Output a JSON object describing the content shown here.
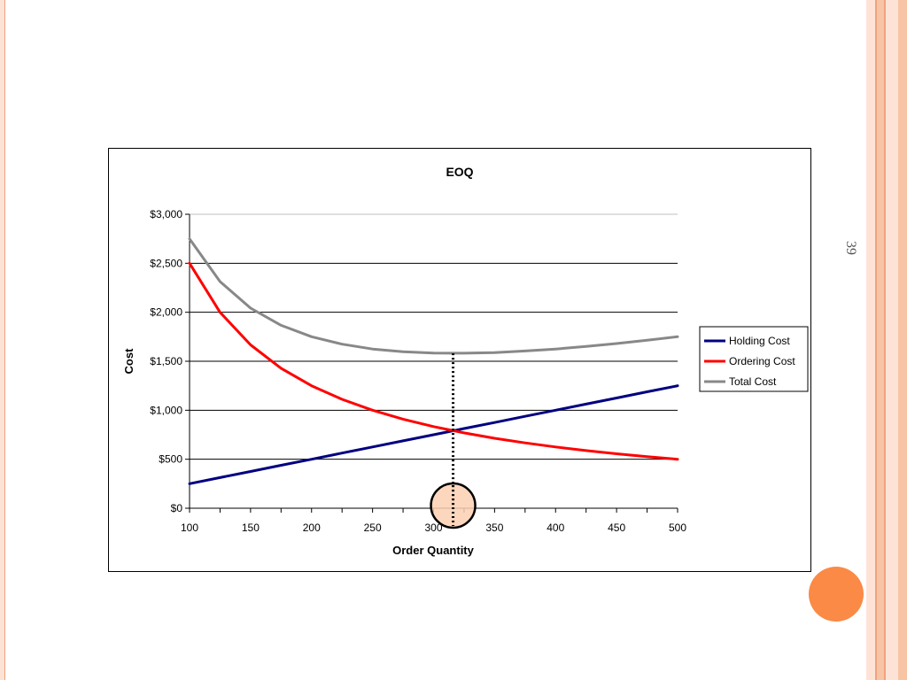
{
  "slide": {
    "number": "39",
    "colors": {
      "edge_light": "#fde3d6",
      "edge_mid": "#f7c4a6",
      "edge_line": "#f0a27f",
      "accent_circle": "#fa8a46",
      "highlight_fill": "#fbd0b2"
    }
  },
  "chart_data": {
    "type": "line",
    "title": "EOQ",
    "xlabel": "Order Quantity",
    "ylabel": "Cost",
    "xlim": [
      100,
      500
    ],
    "ylim": [
      0,
      3000
    ],
    "x_ticks": [
      "100",
      "150",
      "200",
      "250",
      "300",
      "350",
      "400",
      "450",
      "500"
    ],
    "y_ticks": [
      "$0",
      "$500",
      "$1,000",
      "$1,500",
      "$2,000",
      "$2,500",
      "$3,000"
    ],
    "grid": true,
    "legend_position": "right",
    "x": [
      100,
      125,
      150,
      175,
      200,
      225,
      250,
      275,
      300,
      325,
      350,
      375,
      400,
      425,
      450,
      475,
      500
    ],
    "series": [
      {
        "name": "Holding Cost",
        "color": "#000080",
        "values": [
          250,
          313,
          375,
          438,
          500,
          563,
          625,
          688,
          750,
          813,
          875,
          938,
          1000,
          1063,
          1125,
          1188,
          1250
        ]
      },
      {
        "name": "Ordering Cost",
        "color": "#ff0000",
        "values": [
          2500,
          2000,
          1667,
          1429,
          1250,
          1111,
          1000,
          909,
          833,
          769,
          714,
          667,
          625,
          588,
          556,
          526,
          500
        ]
      },
      {
        "name": "Total Cost",
        "color": "#888888",
        "values": [
          2750,
          2313,
          2042,
          1867,
          1750,
          1674,
          1625,
          1597,
          1583,
          1582,
          1589,
          1605,
          1625,
          1651,
          1681,
          1714,
          1750
        ]
      }
    ],
    "annotation": {
      "type": "optimal-point",
      "x": 316,
      "y_top": 1580,
      "color": "#000000"
    }
  }
}
